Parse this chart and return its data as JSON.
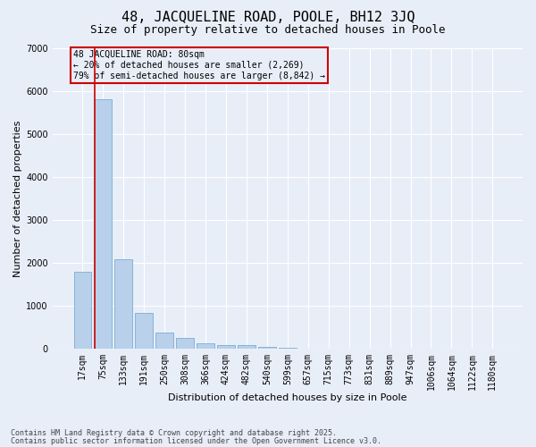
{
  "title1": "48, JACQUELINE ROAD, POOLE, BH12 3JQ",
  "title2": "Size of property relative to detached houses in Poole",
  "xlabel": "Distribution of detached houses by size in Poole",
  "ylabel": "Number of detached properties",
  "categories": [
    "17sqm",
    "75sqm",
    "133sqm",
    "191sqm",
    "250sqm",
    "308sqm",
    "366sqm",
    "424sqm",
    "482sqm",
    "540sqm",
    "599sqm",
    "657sqm",
    "715sqm",
    "773sqm",
    "831sqm",
    "889sqm",
    "947sqm",
    "1006sqm",
    "1064sqm",
    "1122sqm",
    "1180sqm"
  ],
  "values": [
    1780,
    5820,
    2080,
    840,
    380,
    240,
    130,
    90,
    90,
    30,
    10,
    0,
    0,
    0,
    0,
    0,
    0,
    0,
    0,
    0,
    0
  ],
  "bar_color": "#b8d0ea",
  "bar_edge_color": "#7aaed4",
  "vline_color": "#cc0000",
  "annotation_text": "48 JACQUELINE ROAD: 80sqm\n← 20% of detached houses are smaller (2,269)\n79% of semi-detached houses are larger (8,842) →",
  "annotation_box_color": "#cc0000",
  "ylim": [
    0,
    7000
  ],
  "yticks": [
    0,
    1000,
    2000,
    3000,
    4000,
    5000,
    6000,
    7000
  ],
  "footnote1": "Contains HM Land Registry data © Crown copyright and database right 2025.",
  "footnote2": "Contains public sector information licensed under the Open Government Licence v3.0.",
  "bg_color": "#e8eef8",
  "grid_color": "#ffffff",
  "title_fontsize": 11,
  "subtitle_fontsize": 9,
  "axis_label_fontsize": 8,
  "tick_fontsize": 7,
  "footnote_fontsize": 6
}
